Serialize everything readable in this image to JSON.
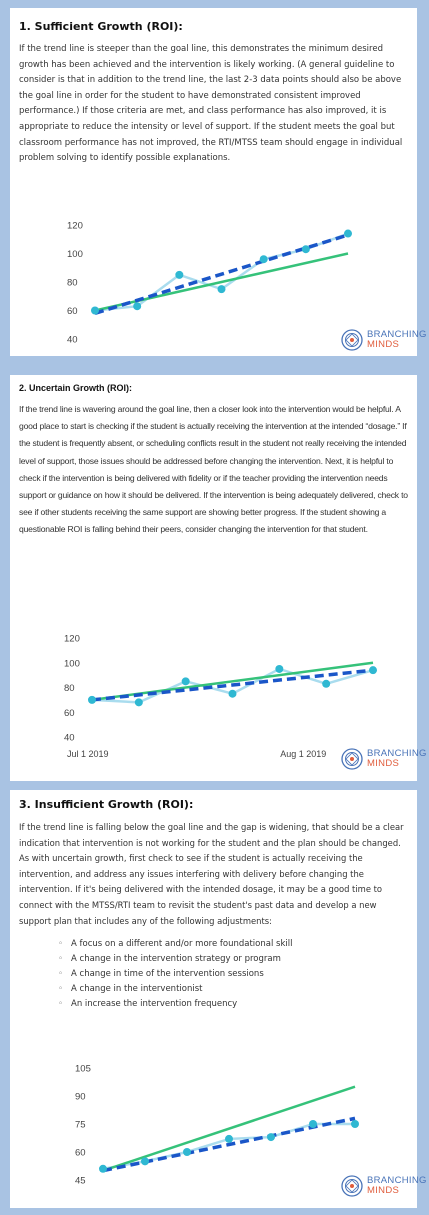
{
  "sections": [
    {
      "title": "1. Sufficient Growth (ROI):",
      "body": "If the trend line is steeper than the goal line, this demonstrates the minimum desired growth has been achieved and the intervention is likely working. (A general guideline to consider is that in addition to the trend line, the last 2-3 data points should also be above the goal line in order for the student to have demonstrated consistent improved performance.) If those criteria are met, and class performance has also improved, it is appropriate to reduce the intensity or level of support. If the student meets the goal but classroom performance has not improved, the RTI/MTSS team should engage in individual problem solving to identify possible explanations."
    },
    {
      "title": "2. Uncertain Growth (ROI):",
      "body": "If the trend line is wavering around the goal line, then a closer look into the intervention would be helpful. A good place to start is checking if the student is actually receiving the intervention at the intended “dosage.” If the student is frequently absent, or scheduling conflicts result in the student not really receiving the intended level of support, those issues should be addressed before changing the intervention. Next, it is helpful to check if the intervention is being delivered with fidelity or if the teacher providing the intervention needs support or guidance on how it should be delivered. If the intervention is being adequately delivered, check to see if other students receiving the same support are showing better progress. If the student showing a questionable ROI is falling behind their peers, consider changing the intervention for that student."
    },
    {
      "title": "3. Insufficient Growth (ROI):",
      "body": "If the trend line is falling below the goal line and the gap is widening, that should be a clear indication that intervention is not working for the student and the plan should be changed. As with uncertain growth, first check to see if the student is actually receiving the intervention, and address any issues interfering with delivery before changing the intervention. If it's being delivered with the intended dosage, it may be a good time to connect with the MTSS/RTI team to revisit the student's past data and develop a new support plan that includes any of the following adjustments:",
      "bullets": [
        "A focus on a different and/or more foundational skill",
        "A change in the intervention strategy or program",
        "A change in time of the intervention sessions",
        "A change in the interventionist",
        "An increase the intervention frequency"
      ]
    }
  ],
  "logo": {
    "line1": "BRANCHING",
    "line2": "MINDS"
  },
  "colors": {
    "data": "#2fb8d2",
    "data_line": "#a9dcee",
    "trend": "#1a56c8",
    "goal": "#35c27a",
    "logo_blue": "#4a74b8",
    "logo_orange": "#e05d3d"
  },
  "chart_data": [
    {
      "type": "line",
      "yticks": [
        40,
        60,
        80,
        100,
        120
      ],
      "ylim": [
        40,
        120
      ],
      "xlabels": [],
      "grid": false,
      "series": [
        {
          "values": [
            60,
            63,
            85,
            75,
            96,
            103,
            114
          ]
        },
        {
          "values": [
            58,
            113
          ]
        },
        {
          "values": [
            60,
            100
          ]
        }
      ]
    },
    {
      "type": "line",
      "yticks": [
        40,
        60,
        80,
        100,
        120
      ],
      "ylim": [
        40,
        120
      ],
      "xlabels": [
        "Jul 1 2019",
        "Aug 1 2019"
      ],
      "grid": false,
      "series": [
        {
          "values": [
            70,
            68,
            85,
            75,
            95,
            83,
            94
          ]
        },
        {
          "values": [
            70,
            94
          ]
        },
        {
          "values": [
            70,
            100
          ]
        }
      ]
    },
    {
      "type": "line",
      "yticks": [
        45,
        60,
        75,
        90,
        105
      ],
      "ylim": [
        45,
        105
      ],
      "xlabels": [],
      "grid": false,
      "series": [
        {
          "values": [
            51,
            55,
            60,
            67,
            68,
            75,
            75
          ]
        },
        {
          "values": [
            50,
            78
          ]
        },
        {
          "values": [
            50,
            95
          ]
        }
      ]
    }
  ]
}
